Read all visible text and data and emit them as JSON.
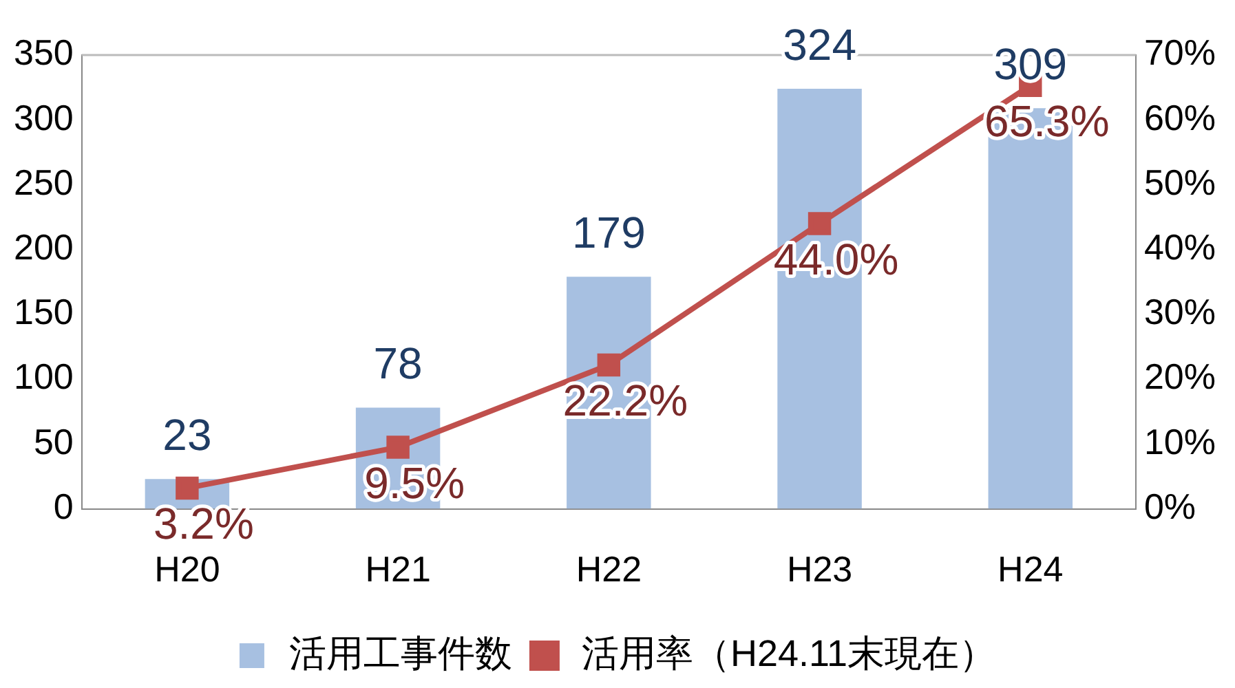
{
  "chart_data": {
    "type": "bar",
    "categories": [
      "H20",
      "H21",
      "H22",
      "H23",
      "H24"
    ],
    "series": [
      {
        "name": "活用工事件数",
        "color": "#a7c0e1",
        "values": [
          23,
          78,
          179,
          324,
          309
        ]
      },
      {
        "name": "活用率（H24.11末現在）",
        "type": "line",
        "axis": "y2",
        "color": "#c0504d",
        "values": [
          3.2,
          9.5,
          22.2,
          44.0,
          65.3
        ],
        "value_labels": [
          "3.2%",
          "9.5%",
          "22.2%",
          "44.0%",
          "65.3%"
        ]
      }
    ],
    "ylim": [
      0,
      350
    ],
    "yticks": [
      0,
      50,
      100,
      150,
      200,
      250,
      300,
      350
    ],
    "y2lim": [
      0,
      70
    ],
    "y2ticks": [
      {
        "value": 0,
        "label": "0%"
      },
      {
        "value": 10,
        "label": "10%"
      },
      {
        "value": 20,
        "label": "20%"
      },
      {
        "value": 30,
        "label": "30%"
      },
      {
        "value": 40,
        "label": "40%"
      },
      {
        "value": 50,
        "label": "50%"
      },
      {
        "value": 60,
        "label": "60%"
      },
      {
        "value": 70,
        "label": "70%"
      }
    ],
    "data_labels": true,
    "grid": false,
    "legend": "bottom",
    "marker": "square",
    "line_style": "solid"
  }
}
